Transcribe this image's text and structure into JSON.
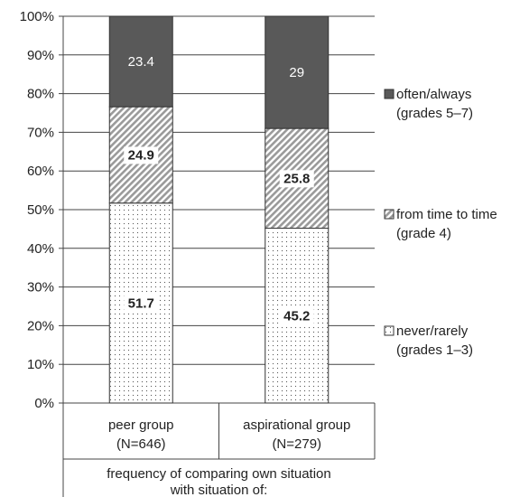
{
  "chart_data": {
    "type": "bar",
    "stacked": true,
    "ylim": [
      0,
      100
    ],
    "y_ticks": [
      "0%",
      "10%",
      "20%",
      "30%",
      "40%",
      "50%",
      "60%",
      "70%",
      "80%",
      "90%",
      "100%"
    ],
    "grid": true,
    "legend_position": "right",
    "categories": [
      {
        "line1": "peer group",
        "line2": "(N=646)"
      },
      {
        "line1": "aspirational group",
        "line2": "(N=279)"
      }
    ],
    "xlabel_lines": [
      "frequency of comparing own situation",
      "with situation of:"
    ],
    "series": [
      {
        "name_lines": [
          "never/rarely",
          "(grades 1–3)"
        ],
        "values": [
          51.7,
          45.2
        ],
        "labels": [
          "51.7",
          "45.2"
        ],
        "pattern": "dots",
        "color": "#ffffff"
      },
      {
        "name_lines": [
          "from time to time",
          "(grade 4)"
        ],
        "values": [
          24.9,
          25.8
        ],
        "labels": [
          "24.9",
          "25.8"
        ],
        "pattern": "hatch",
        "color": "#a9a9a9"
      },
      {
        "name_lines": [
          "often/always",
          "(grades 5–7)"
        ],
        "values": [
          23.4,
          29
        ],
        "labels": [
          "23.4",
          "29"
        ],
        "pattern": "solid",
        "color": "#595959"
      }
    ]
  }
}
